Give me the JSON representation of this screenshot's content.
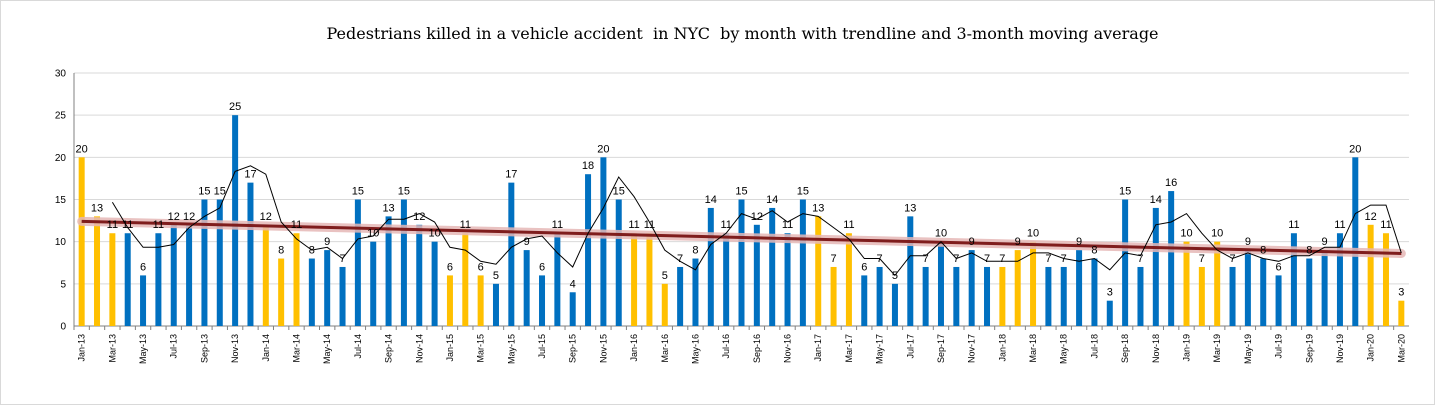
{
  "chart_data": {
    "type": "bar",
    "title": "Pedestrians killed in a vehicle accident  in NYC  by month with trendline and 3-month moving average",
    "xlabel": "",
    "ylabel": "",
    "ylim": [
      0,
      30
    ],
    "yticks": [
      0,
      5,
      10,
      15,
      20,
      25,
      30
    ],
    "grid": true,
    "legend": "none",
    "colors": {
      "winter": "#ffc000",
      "other": "#0070c0",
      "trend": "#7f1d1d",
      "trend_band": "#e6b8b7",
      "moving_average": "#000000"
    },
    "categories": [
      "Jan-13",
      "Feb-13",
      "Mar-13",
      "Apr-13",
      "May-13",
      "Jun-13",
      "Jul-13",
      "Aug-13",
      "Sep-13",
      "Oct-13",
      "Nov-13",
      "Dec-13",
      "Jan-14",
      "Feb-14",
      "Mar-14",
      "Apr-14",
      "May-14",
      "Jun-14",
      "Jul-14",
      "Aug-14",
      "Sep-14",
      "Oct-14",
      "Nov-14",
      "Dec-14",
      "Jan-15",
      "Feb-15",
      "Mar-15",
      "Apr-15",
      "May-15",
      "Jun-15",
      "Jul-15",
      "Aug-15",
      "Sep-15",
      "Oct-15",
      "Nov-15",
      "Dec-15",
      "Jan-16",
      "Feb-16",
      "Mar-16",
      "Apr-16",
      "May-16",
      "Jun-16",
      "Jul-16",
      "Aug-16",
      "Sep-16",
      "Oct-16",
      "Nov-16",
      "Dec-16",
      "Jan-17",
      "Feb-17",
      "Mar-17",
      "Apr-17",
      "May-17",
      "Jun-17",
      "Jul-17",
      "Aug-17",
      "Sep-17",
      "Oct-17",
      "Nov-17",
      "Dec-17",
      "Jan-18",
      "Feb-18",
      "Mar-18",
      "Apr-18",
      "May-18",
      "Jun-18",
      "Jul-18",
      "Aug-18",
      "Sep-18",
      "Oct-18",
      "Nov-18",
      "Dec-18",
      "Jan-19",
      "Feb-19",
      "Mar-19",
      "Apr-19",
      "May-19",
      "Jun-19",
      "Jul-19",
      "Aug-19",
      "Sep-19",
      "Oct-19",
      "Nov-19",
      "Dec-19",
      "Jan-20",
      "Feb-20",
      "Mar-20"
    ],
    "tick_labels": [
      "Jan-13",
      "Mar-13",
      "May-13",
      "Jul-13",
      "Sep-13",
      "Nov-13",
      "Jan-14",
      "Mar-14",
      "May-14",
      "Jul-14",
      "Sep-14",
      "Nov-14",
      "Jan-15",
      "Mar-15",
      "May-15",
      "Jul-15",
      "Sep-15",
      "Nov-15",
      "Jan-16",
      "Mar-16",
      "May-16",
      "Jul-16",
      "Sep-16",
      "Nov-16",
      "Jan-17",
      "Mar-17",
      "May-17",
      "Jul-17",
      "Sep-17",
      "Nov-17",
      "Jan-18",
      "Mar-18",
      "May-18",
      "Jul-18",
      "Sep-18",
      "Nov-18",
      "Jan-19",
      "Mar-19",
      "May-19",
      "Jul-19",
      "Sep-19",
      "Nov-19",
      "Jan-20",
      "Mar-20"
    ],
    "values": [
      20,
      13,
      11,
      11,
      6,
      11,
      12,
      12,
      15,
      15,
      25,
      17,
      12,
      8,
      11,
      8,
      9,
      7,
      15,
      10,
      13,
      15,
      12,
      10,
      6,
      11,
      6,
      5,
      17,
      9,
      6,
      11,
      4,
      18,
      20,
      15,
      11,
      11,
      5,
      7,
      8,
      14,
      11,
      15,
      12,
      14,
      11,
      15,
      13,
      7,
      11,
      6,
      7,
      5,
      13,
      7,
      10,
      7,
      9,
      7,
      7,
      9,
      10,
      7,
      7,
      9,
      8,
      3,
      15,
      7,
      14,
      16,
      10,
      7,
      10,
      7,
      9,
      8,
      6,
      11,
      8,
      9,
      11,
      20,
      12,
      11,
      3
    ],
    "winter_months": [
      1,
      2,
      3
    ],
    "trendline": {
      "start": 12.4,
      "end": 8.6
    }
  }
}
